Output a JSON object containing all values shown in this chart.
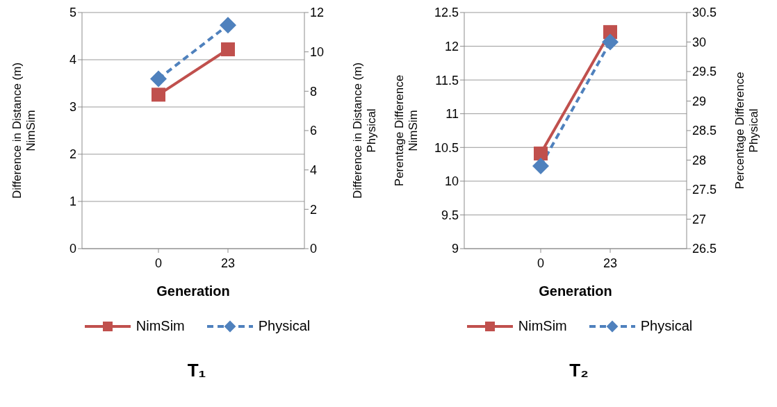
{
  "chart_data": [
    {
      "type": "line",
      "title": "T₁",
      "xlabel": "Generation",
      "ylabel": "Difference in Distance (m)\nNimSim",
      "y2label": "Difference in Distance (m)\nPhysical",
      "categories": [
        "0",
        "23"
      ],
      "series": [
        {
          "name": "NimSim",
          "color": "#c0504d",
          "values": [
            3.26,
            4.22
          ],
          "marker": "square",
          "line_style": "solid"
        },
        {
          "name": "Physical",
          "color": "#4f81bd",
          "values": [
            8.63,
            11.36
          ],
          "axis": "y2",
          "marker": "diamond",
          "line_style": "dashed"
        }
      ],
      "ylim": [
        0,
        5
      ],
      "yticks": [
        0,
        1,
        2,
        3,
        4,
        5
      ],
      "y2lim": [
        0,
        12
      ],
      "y2ticks": [
        0,
        2,
        4,
        6,
        8,
        10,
        12
      ],
      "grid": "y",
      "legend": "bottom"
    },
    {
      "type": "line",
      "title": "T₂",
      "xlabel": "Generation",
      "ylabel": "Perentage Difference\nNimSim",
      "y2label": "Percentage Difference\nPhysical",
      "categories": [
        "0",
        "23"
      ],
      "series": [
        {
          "name": "NimSim",
          "color": "#c0504d",
          "values": [
            10.41,
            12.21
          ],
          "marker": "square",
          "line_style": "solid"
        },
        {
          "name": "Physical",
          "color": "#4f81bd",
          "values": [
            27.9,
            30.0
          ],
          "axis": "y2",
          "marker": "diamond",
          "line_style": "dashed"
        }
      ],
      "ylim": [
        9,
        12.5
      ],
      "yticks": [
        9,
        9.5,
        10,
        10.5,
        11,
        11.5,
        12,
        12.5
      ],
      "y2lim": [
        26.5,
        30.5
      ],
      "y2ticks": [
        26.5,
        27,
        27.5,
        28,
        28.5,
        29,
        29.5,
        30,
        30.5
      ],
      "grid": "y",
      "legend": "bottom"
    }
  ]
}
